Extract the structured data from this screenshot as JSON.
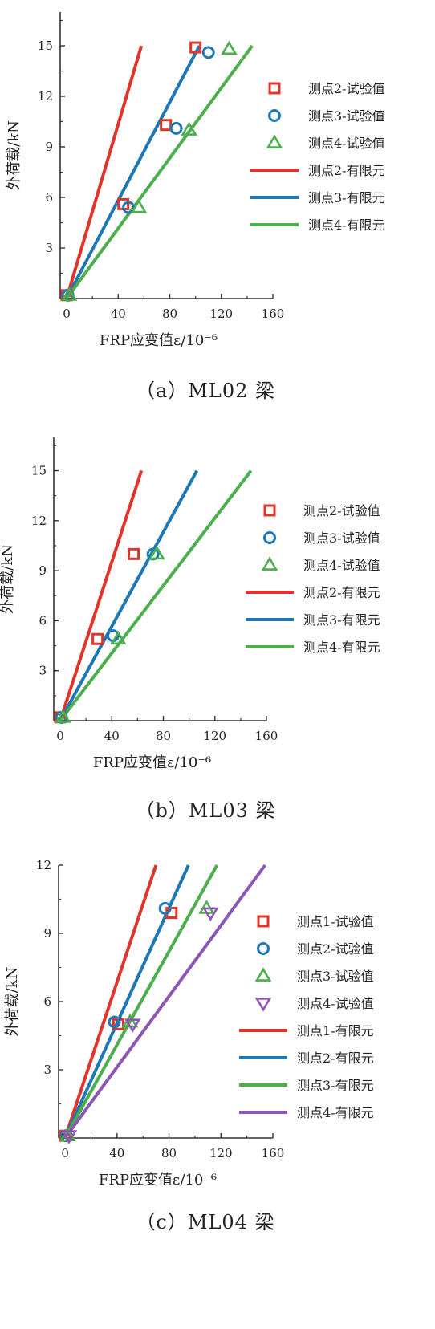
{
  "chart_data": [
    {
      "type": "line",
      "caption": "（a）ML02 梁",
      "xlabel": "FRP应变值ε/10⁻⁶",
      "ylabel": "外荷载/kN",
      "xlim": [
        -5,
        160
      ],
      "ylim": [
        0,
        17
      ],
      "xticks": [
        "0",
        "40",
        "80",
        "120",
        "160"
      ],
      "xtick_values": [
        0,
        40,
        80,
        120,
        160
      ],
      "yticks": [
        "3",
        "6",
        "9",
        "12",
        "15"
      ],
      "ytick_values": [
        3,
        6,
        9,
        12,
        15
      ],
      "series": [
        {
          "name": "测点2-试验值",
          "kind": "scatter",
          "marker": "square",
          "color": "#e0352b",
          "x": [
            0,
            44,
            77,
            100
          ],
          "y": [
            0.2,
            5.6,
            10.3,
            14.9
          ]
        },
        {
          "name": "测点3-试验值",
          "kind": "scatter",
          "marker": "circle",
          "color": "#1f77b4",
          "x": [
            1,
            48,
            85,
            110
          ],
          "y": [
            0.2,
            5.4,
            10.1,
            14.6
          ]
        },
        {
          "name": "测点4-试验值",
          "kind": "scatter",
          "marker": "triangle-up",
          "color": "#4cae4c",
          "x": [
            2,
            56,
            95,
            126
          ],
          "y": [
            0.2,
            5.4,
            10.0,
            14.8
          ]
        },
        {
          "name": "测点2-有限元",
          "kind": "line",
          "color": "#e0352b",
          "x": [
            0,
            58
          ],
          "y": [
            0,
            15
          ]
        },
        {
          "name": "测点3-有限元",
          "kind": "line",
          "color": "#1f77b4",
          "x": [
            0,
            103
          ],
          "y": [
            0,
            15
          ]
        },
        {
          "name": "测点4-有限元",
          "kind": "line",
          "color": "#4cae4c",
          "x": [
            0,
            144
          ],
          "y": [
            0,
            15
          ]
        }
      ]
    },
    {
      "type": "line",
      "caption": "（b）ML03 梁",
      "xlabel": "FRP应变值ε/10⁻⁶",
      "ylabel": "外荷载/kN",
      "xlim": [
        -5,
        160
      ],
      "ylim": [
        0,
        17
      ],
      "xticks": [
        "0",
        "40",
        "80",
        "120",
        "160"
      ],
      "xtick_values": [
        0,
        40,
        80,
        120,
        160
      ],
      "yticks": [
        "3",
        "6",
        "9",
        "12",
        "15"
      ],
      "ytick_values": [
        3,
        6,
        9,
        12,
        15
      ],
      "series": [
        {
          "name": "测点2-试验值",
          "kind": "scatter",
          "marker": "square",
          "color": "#e0352b",
          "x": [
            0,
            29,
            57
          ],
          "y": [
            0.2,
            4.9,
            10.0
          ]
        },
        {
          "name": "测点3-试验值",
          "kind": "scatter",
          "marker": "circle",
          "color": "#1f77b4",
          "x": [
            1,
            41,
            72
          ],
          "y": [
            0.2,
            5.1,
            10.0
          ]
        },
        {
          "name": "测点4-试验值",
          "kind": "scatter",
          "marker": "triangle-up",
          "color": "#4cae4c",
          "x": [
            2,
            45,
            75
          ],
          "y": [
            0.2,
            4.9,
            10.0
          ]
        },
        {
          "name": "测点2-有限元",
          "kind": "line",
          "color": "#e0352b",
          "x": [
            0,
            63
          ],
          "y": [
            0,
            15
          ]
        },
        {
          "name": "测点3-有限元",
          "kind": "line",
          "color": "#1f77b4",
          "x": [
            0,
            106
          ],
          "y": [
            0,
            15
          ]
        },
        {
          "name": "测点4-有限元",
          "kind": "line",
          "color": "#4cae4c",
          "x": [
            0,
            148
          ],
          "y": [
            0,
            15
          ]
        }
      ]
    },
    {
      "type": "line",
      "caption": "（c）ML04 梁",
      "xlabel": "FRP应变值ε/10⁻⁶",
      "ylabel": "外荷载/kN",
      "xlim": [
        -5,
        160
      ],
      "ylim": [
        0,
        12
      ],
      "xticks": [
        "0",
        "40",
        "80",
        "120",
        "160"
      ],
      "xtick_values": [
        0,
        40,
        80,
        120,
        160
      ],
      "yticks": [
        "3",
        "6",
        "9",
        "12"
      ],
      "ytick_values": [
        3,
        6,
        9,
        12
      ],
      "series": [
        {
          "name": "测点1-试验值",
          "kind": "scatter",
          "marker": "square",
          "color": "#e0352b",
          "x": [
            0,
            41,
            82
          ],
          "y": [
            0.1,
            5.0,
            9.9
          ]
        },
        {
          "name": "测点2-试验值",
          "kind": "scatter",
          "marker": "circle",
          "color": "#1f77b4",
          "x": [
            1,
            38,
            77
          ],
          "y": [
            0.1,
            5.1,
            10.1
          ]
        },
        {
          "name": "测点3-试验值",
          "kind": "scatter",
          "marker": "triangle-up",
          "color": "#4cae4c",
          "x": [
            2,
            50,
            109
          ],
          "y": [
            0.1,
            5.1,
            10.1
          ]
        },
        {
          "name": "测点4-试验值",
          "kind": "scatter",
          "marker": "triangle-down",
          "color": "#8e57b5",
          "x": [
            3,
            52,
            112
          ],
          "y": [
            0.1,
            5.0,
            9.9
          ]
        },
        {
          "name": "测点1-有限元",
          "kind": "line",
          "color": "#e0352b",
          "x": [
            0,
            70
          ],
          "y": [
            0,
            12
          ]
        },
        {
          "name": "测点2-有限元",
          "kind": "line",
          "color": "#1f77b4",
          "x": [
            0,
            95
          ],
          "y": [
            0,
            12
          ]
        },
        {
          "name": "测点3-有限元",
          "kind": "line",
          "color": "#4cae4c",
          "x": [
            0,
            117
          ],
          "y": [
            0,
            12
          ]
        },
        {
          "name": "测点4-有限元",
          "kind": "line",
          "color": "#8e57b5",
          "x": [
            0,
            154
          ],
          "y": [
            0,
            12
          ]
        }
      ]
    }
  ]
}
